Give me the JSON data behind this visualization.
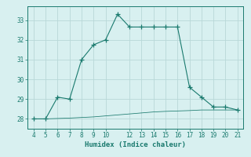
{
  "x": [
    4,
    5,
    6,
    7,
    8,
    9,
    10,
    11,
    12,
    13,
    14,
    15,
    16,
    17,
    18,
    19,
    20,
    21
  ],
  "y_humidex": [
    28.0,
    28.0,
    29.1,
    29.0,
    31.0,
    31.75,
    32.0,
    33.3,
    32.65,
    32.65,
    32.65,
    32.65,
    32.65,
    29.6,
    29.1,
    28.6,
    28.6,
    28.45
  ],
  "y_base": [
    28.0,
    28.0,
    28.02,
    28.04,
    28.07,
    28.1,
    28.15,
    28.2,
    28.25,
    28.3,
    28.35,
    28.38,
    28.4,
    28.42,
    28.45,
    28.45,
    28.45,
    28.45
  ],
  "xlabel": "Humidex (Indice chaleur)",
  "xlim": [
    3.5,
    21.5
  ],
  "ylim": [
    27.5,
    33.7
  ],
  "yticks": [
    28,
    29,
    30,
    31,
    32,
    33
  ],
  "xticks": [
    4,
    5,
    6,
    7,
    8,
    9,
    10,
    12,
    13,
    14,
    15,
    16,
    17,
    18,
    19,
    20,
    21
  ],
  "xtick_labels": [
    "4",
    "5",
    "6",
    "7",
    "8",
    "9",
    "10",
    "12",
    "13",
    "14",
    "15",
    "16",
    "17",
    "18",
    "19",
    "20",
    "21"
  ],
  "line_color": "#1a7a6e",
  "bg_color": "#d8f0f0",
  "grid_color": "#b8d8d8",
  "marker": "+",
  "marker_size": 4,
  "linewidth": 0.8,
  "tick_fontsize": 5.5,
  "xlabel_fontsize": 6.5
}
